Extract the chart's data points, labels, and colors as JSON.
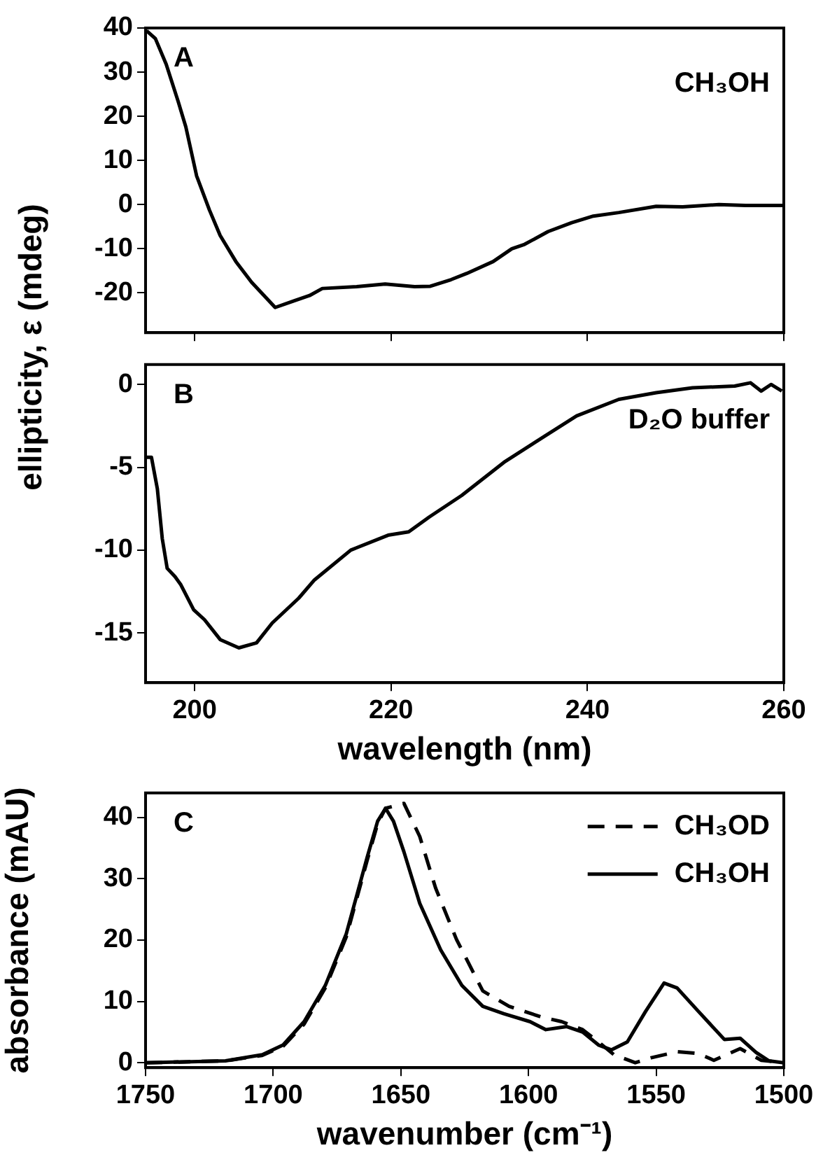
{
  "chart_data": [
    {
      "type": "line",
      "ylabel": "ellipticity, ε (mdeg)",
      "annotations": [
        "A",
        "CH₃OH"
      ],
      "xlim": [
        195,
        260
      ],
      "xticks": [
        200,
        220,
        240,
        260
      ],
      "ylim": [
        -29,
        40
      ],
      "yticks": [
        -20,
        -10,
        0,
        10,
        20,
        30,
        40
      ],
      "tick_labels": "y",
      "series": [
        {
          "color": "#000000",
          "x": [
            195.1,
            196,
            197.1,
            198.3,
            199.1,
            200.2,
            201.5,
            202.6,
            204.2,
            205.8,
            208.2,
            210.1,
            211.7,
            213,
            216.5,
            219.4,
            222.4,
            224,
            226.1,
            227.7,
            230.4,
            232.3,
            233.6,
            236,
            238.4,
            240.6,
            243.2,
            247,
            249.7,
            253.4,
            256.1,
            260
          ],
          "values": [
            39.4,
            37.6,
            31.8,
            23.5,
            17.6,
            6.5,
            -1.2,
            -7,
            -12.9,
            -17.6,
            -23.3,
            -21.8,
            -20.6,
            -19,
            -18.6,
            -18,
            -18.6,
            -18.5,
            -17,
            -15.6,
            -12.9,
            -10,
            -9,
            -6.1,
            -4.1,
            -2.6,
            -1.8,
            -0.4,
            -0.5,
            0,
            -0.2,
            -0.2
          ]
        }
      ]
    },
    {
      "type": "line",
      "xlabel": "wavelength (nm)",
      "annotations": [
        "B",
        "D₂O buffer"
      ],
      "xlim": [
        195,
        260
      ],
      "xticks": [
        200,
        220,
        240,
        260
      ],
      "ylim": [
        -18,
        1.2
      ],
      "yticks": [
        -15,
        -10,
        -5,
        0
      ],
      "series": [
        {
          "color": "#000000",
          "x": [
            195.1,
            195.6,
            196.2,
            196.7,
            197.2,
            198,
            198.6,
            199.9,
            201,
            202.6,
            204.5,
            206.3,
            207.9,
            210.6,
            212.2,
            215.9,
            219.7,
            221.8,
            223.9,
            227.2,
            231.5,
            235.7,
            238.9,
            243.2,
            247,
            250.7,
            255,
            256.6,
            257.7,
            258.7,
            259.8
          ],
          "values": [
            -4.4,
            -4.4,
            -6.3,
            -9.3,
            -11.1,
            -11.6,
            -12.1,
            -13.6,
            -14.2,
            -15.4,
            -15.9,
            -15.6,
            -14.4,
            -12.9,
            -11.8,
            -10,
            -9.1,
            -8.9,
            -8,
            -6.7,
            -4.7,
            -3.1,
            -1.9,
            -0.9,
            -0.5,
            -0.2,
            -0.1,
            0.1,
            -0.4,
            0,
            -0.4
          ]
        }
      ]
    },
    {
      "type": "line",
      "xlabel": "wavenumber (cm⁻¹)",
      "ylabel": "absorbance (mAU)",
      "annotations": [
        "C"
      ],
      "xlim": [
        1750,
        1500
      ],
      "xticks": [
        1750,
        1700,
        1650,
        1600,
        1550,
        1500
      ],
      "ylim": [
        -0.8,
        44
      ],
      "yticks": [
        0,
        10,
        20,
        30,
        40
      ],
      "legend": "top right",
      "series": [
        {
          "name": "CH₃OD",
          "color": "#000000",
          "line_style": "dashed",
          "x": [
            1750,
            1718.7,
            1704.3,
            1696.1,
            1687.9,
            1679.6,
            1671.4,
            1663.2,
            1659.1,
            1656,
            1648.8,
            1642.6,
            1636.4,
            1628.2,
            1617.9,
            1607.6,
            1595.3,
            1587,
            1578.8,
            1572.6,
            1566.5,
            1558.2,
            1552,
            1541.8,
            1533.5,
            1527.4,
            1517.1,
            1508.8,
            1500
          ],
          "values": [
            0,
            0.3,
            1.2,
            2.7,
            6.3,
            12.2,
            20.5,
            33,
            39,
            41.5,
            42.3,
            36.9,
            28.5,
            20.1,
            11.7,
            9.2,
            7.5,
            6.7,
            5.4,
            3.4,
            1.3,
            0,
            0.8,
            1.8,
            1.5,
            0.4,
            2.3,
            0.4,
            0
          ]
        },
        {
          "name": "CH₃OH",
          "color": "#000000",
          "line_style": "solid",
          "x": [
            1750,
            1718.7,
            1704.3,
            1696.1,
            1687.9,
            1679.6,
            1671.4,
            1663.2,
            1659.1,
            1656,
            1652.9,
            1648.8,
            1642.6,
            1634.4,
            1626.1,
            1617.9,
            1609.7,
            1599.4,
            1593.2,
            1585,
            1578.8,
            1572.6,
            1567.5,
            1561.3,
            1554.1,
            1546.9,
            1541.8,
            1533.5,
            1523.3,
            1517.1,
            1510.9,
            1505.8,
            1500
          ],
          "values": [
            0,
            0.3,
            1.3,
            2.9,
            6.7,
            12.6,
            21,
            33.5,
            39.4,
            41.5,
            39.4,
            34.4,
            26,
            18.4,
            12.6,
            9.2,
            8,
            6.7,
            5.4,
            5.9,
            5,
            2.9,
            2.1,
            3.4,
            8.4,
            13,
            12.2,
            8.4,
            3.8,
            4,
            1.7,
            0.3,
            0
          ]
        }
      ]
    }
  ]
}
